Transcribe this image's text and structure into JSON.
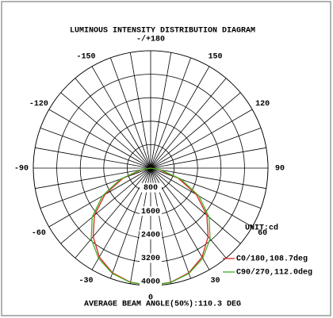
{
  "chart_data": {
    "type": "polar",
    "title": "LUMINOUS INTENSITY DISTRIBUTION DIAGRAM",
    "rlim": [
      0,
      4000
    ],
    "rticks": [
      800,
      1600,
      2400,
      3200,
      4000
    ],
    "thetaticks": [
      0,
      30,
      60,
      90,
      120,
      150,
      {
        "value": 180,
        "label": "-/+180"
      },
      -150,
      -120,
      -90,
      -60,
      -30
    ],
    "thetagrid": [
      0,
      10,
      20,
      30,
      40,
      50,
      60,
      70,
      80,
      90,
      100,
      110,
      120,
      130,
      140,
      150,
      160,
      170,
      180,
      -170,
      -160,
      -150,
      -140,
      -130,
      -120,
      -110,
      -100,
      -90,
      -80,
      -70,
      -60,
      -50,
      -40,
      -30,
      -20,
      -10
    ],
    "theta": [
      -90,
      -80,
      -70,
      -60,
      -50,
      -40,
      -30,
      -20,
      -10,
      0,
      10,
      20,
      30,
      40,
      50,
      60,
      70,
      80,
      90
    ],
    "series": [
      {
        "name": "C0/180,108.7deg",
        "color": "#e02020",
        "values": [
          0,
          300,
          1000,
          1800,
          2500,
          3050,
          3500,
          3800,
          3950,
          4000,
          3950,
          3800,
          3500,
          3050,
          2500,
          1800,
          1000,
          300,
          0
        ]
      },
      {
        "name": "C90/270,112.0deg",
        "color": "#40b020",
        "values": [
          0,
          350,
          1100,
          1900,
          2600,
          3150,
          3550,
          3820,
          3960,
          3990,
          3960,
          3820,
          3550,
          3150,
          2600,
          1900,
          1100,
          350,
          0
        ]
      }
    ],
    "unit_label": "UNIT:cd",
    "footer": "AVERAGE BEAM ANGLE(50%):110.3 DEG"
  }
}
